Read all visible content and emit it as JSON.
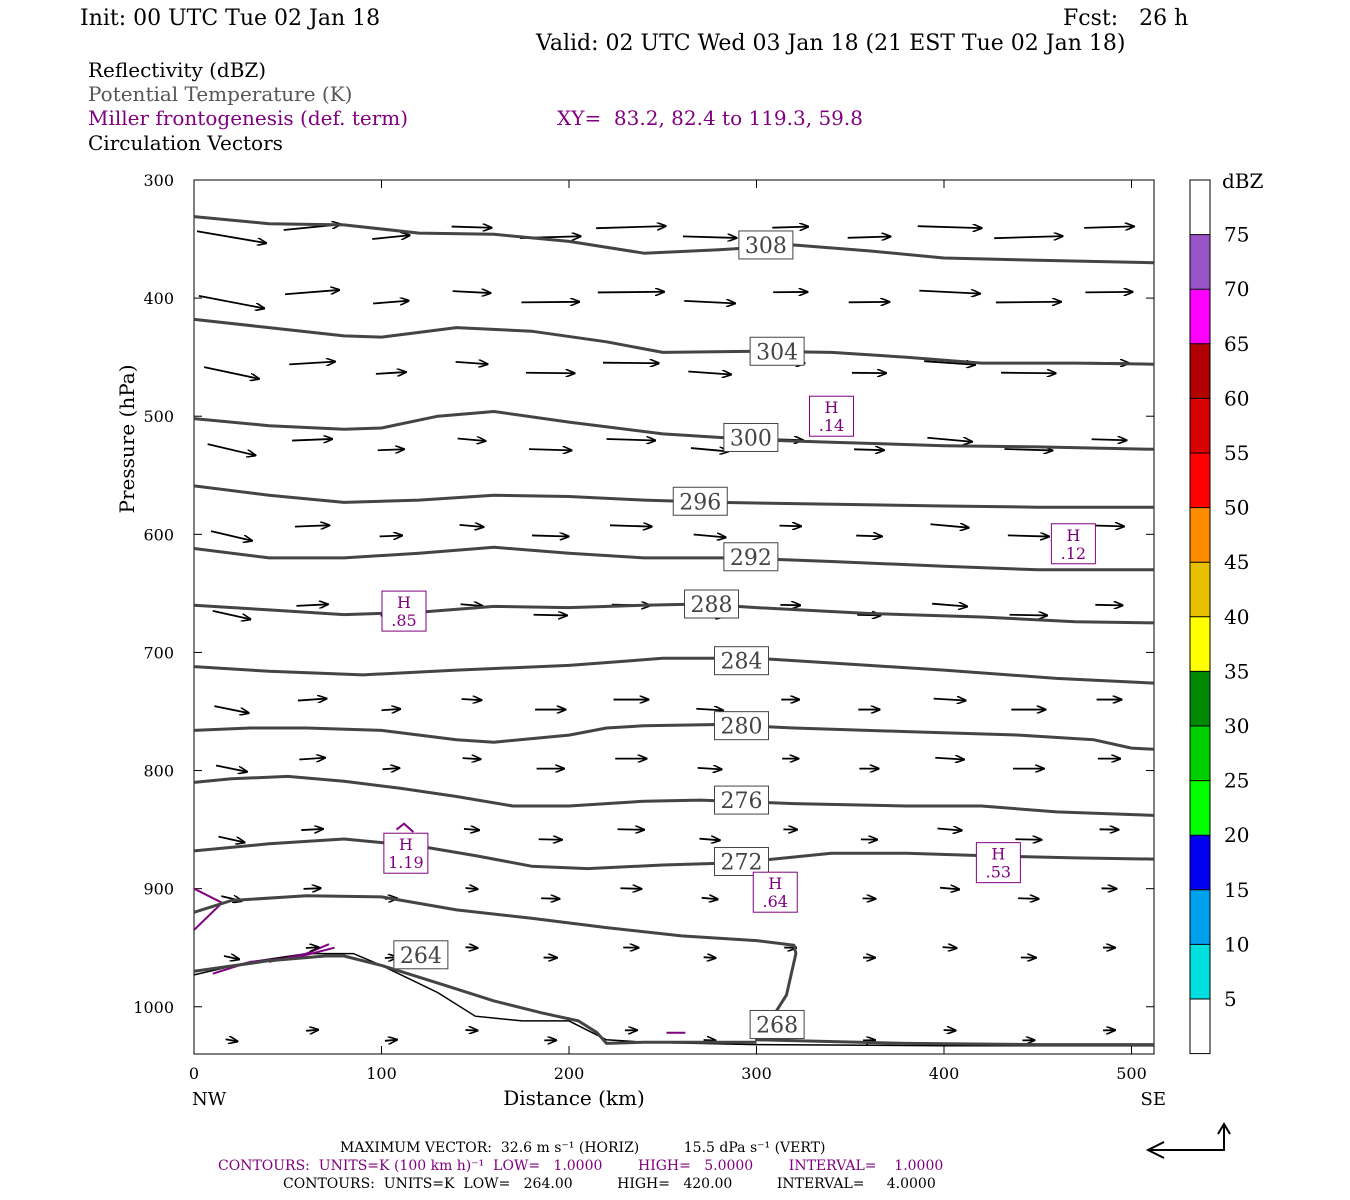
{
  "header": {
    "init": "Init: 00 UTC Tue 02 Jan 18",
    "fcst": "Fcst:   26 h",
    "valid": "Valid: 02 UTC Wed 03 Jan 18 (21 EST Tue 02 Jan 18)",
    "fields": [
      {
        "label": "Reflectivity (dBZ)",
        "color": "#000000"
      },
      {
        "label": "Potential Temperature (K)",
        "color": "#555555"
      },
      {
        "label": "Miller frontogenesis (def. term)",
        "color": "#800080"
      },
      {
        "label": "Circulation Vectors",
        "color": "#000000"
      }
    ],
    "xy": "XY=  83.2, 82.4 to 119.3, 59.8"
  },
  "colorbar": {
    "unit": "dBZ",
    "levels": [
      "5",
      "10",
      "15",
      "20",
      "25",
      "30",
      "35",
      "40",
      "45",
      "50",
      "55",
      "60",
      "65",
      "70",
      "75"
    ],
    "colors": [
      "#ffffff",
      "#00e0e0",
      "#00a0f0",
      "#0000f0",
      "#00ff00",
      "#00d000",
      "#008800",
      "#ffff00",
      "#e8c000",
      "#ff8c00",
      "#ff0000",
      "#d80000",
      "#b00000",
      "#ff00ff",
      "#9955c8",
      "#ffffff"
    ]
  },
  "footer": {
    "vector": "MAXIMUM VECTOR:  32.6 m s⁻¹ (HORIZ)          15.5 dPa s⁻¹ (VERT)",
    "contours1": "CONTOURS:  UNITS=K (100 km h)⁻¹  LOW=   1.0000        HIGH=   5.0000        INTERVAL=    1.0000",
    "contours2": "CONTOURS:  UNITS=K  LOW=   264.00          HIGH=   420.00          INTERVAL=     4.0000"
  },
  "chart_data": {
    "type": "line",
    "title": "",
    "xlabel": "Distance (km)",
    "ylabel": "Pressure (hPa)",
    "xlim": [
      0,
      512
    ],
    "ylim": [
      1040,
      300
    ],
    "x_ticks": [
      0,
      100,
      200,
      300,
      400,
      500
    ],
    "y_ticks": [
      300,
      400,
      500,
      600,
      700,
      800,
      900,
      1000
    ],
    "x_end_labels": {
      "left": "NW",
      "right": "SE"
    },
    "isentrope_color": "#444444",
    "frontogenesis_color": "#800080",
    "isentropes": [
      {
        "label": "308",
        "label_at": [
          305,
          355
        ],
        "points": [
          [
            0,
            331
          ],
          [
            40,
            337
          ],
          [
            80,
            338
          ],
          [
            120,
            345
          ],
          [
            160,
            346
          ],
          [
            200,
            352
          ],
          [
            240,
            362
          ],
          [
            280,
            359
          ],
          [
            320,
            355
          ],
          [
            360,
            360
          ],
          [
            400,
            366
          ],
          [
            450,
            368
          ],
          [
            512,
            370
          ]
        ]
      },
      {
        "label": "304",
        "label_at": [
          311,
          445
        ],
        "points": [
          [
            0,
            418
          ],
          [
            40,
            425
          ],
          [
            80,
            432
          ],
          [
            100,
            433
          ],
          [
            140,
            425
          ],
          [
            180,
            428
          ],
          [
            220,
            437
          ],
          [
            250,
            446
          ],
          [
            300,
            445
          ],
          [
            340,
            446
          ],
          [
            380,
            450
          ],
          [
            420,
            455
          ],
          [
            470,
            455
          ],
          [
            512,
            456
          ]
        ]
      },
      {
        "label": "300",
        "label_at": [
          297,
          518
        ],
        "points": [
          [
            0,
            502
          ],
          [
            40,
            508
          ],
          [
            80,
            511
          ],
          [
            100,
            510
          ],
          [
            130,
            500
          ],
          [
            160,
            496
          ],
          [
            200,
            505
          ],
          [
            250,
            515
          ],
          [
            300,
            520
          ],
          [
            340,
            522
          ],
          [
            400,
            525
          ],
          [
            450,
            526
          ],
          [
            512,
            528
          ]
        ]
      },
      {
        "label": "296",
        "label_at": [
          270,
          572
        ],
        "points": [
          [
            0,
            559
          ],
          [
            40,
            567
          ],
          [
            80,
            573
          ],
          [
            120,
            571
          ],
          [
            160,
            567
          ],
          [
            200,
            568
          ],
          [
            240,
            571
          ],
          [
            280,
            573
          ],
          [
            320,
            574
          ],
          [
            400,
            576
          ],
          [
            450,
            577
          ],
          [
            512,
            577
          ]
        ]
      },
      {
        "label": "292",
        "label_at": [
          297,
          619
        ],
        "points": [
          [
            0,
            612
          ],
          [
            40,
            620
          ],
          [
            80,
            620
          ],
          [
            120,
            616
          ],
          [
            160,
            611
          ],
          [
            200,
            616
          ],
          [
            240,
            620
          ],
          [
            290,
            620
          ],
          [
            340,
            623
          ],
          [
            400,
            627
          ],
          [
            450,
            630
          ],
          [
            512,
            630
          ]
        ]
      },
      {
        "label": "288",
        "label_at": [
          276,
          659
        ],
        "points": [
          [
            0,
            660
          ],
          [
            40,
            664
          ],
          [
            80,
            668
          ],
          [
            120,
            666
          ],
          [
            160,
            661
          ],
          [
            200,
            662
          ],
          [
            240,
            660
          ],
          [
            270,
            659
          ],
          [
            300,
            662
          ],
          [
            360,
            667
          ],
          [
            420,
            670
          ],
          [
            470,
            674
          ],
          [
            512,
            675
          ]
        ]
      },
      {
        "label": "284",
        "label_at": [
          292,
          707
        ],
        "points": [
          [
            0,
            712
          ],
          [
            40,
            716
          ],
          [
            90,
            719
          ],
          [
            140,
            715
          ],
          [
            200,
            711
          ],
          [
            250,
            705
          ],
          [
            300,
            705
          ],
          [
            360,
            711
          ],
          [
            400,
            715
          ],
          [
            460,
            722
          ],
          [
            512,
            726
          ]
        ]
      },
      {
        "label": "280",
        "label_at": [
          292,
          762
        ],
        "points": [
          [
            0,
            766
          ],
          [
            30,
            764
          ],
          [
            60,
            764
          ],
          [
            100,
            766
          ],
          [
            140,
            774
          ],
          [
            160,
            776
          ],
          [
            200,
            770
          ],
          [
            220,
            764
          ],
          [
            240,
            762
          ],
          [
            280,
            761
          ],
          [
            320,
            764
          ],
          [
            380,
            767
          ],
          [
            440,
            770
          ],
          [
            480,
            774
          ],
          [
            500,
            781
          ],
          [
            512,
            782
          ]
        ]
      },
      {
        "label": "276",
        "label_at": [
          292,
          825
        ],
        "points": [
          [
            0,
            810
          ],
          [
            20,
            807
          ],
          [
            50,
            805
          ],
          [
            80,
            809
          ],
          [
            110,
            815
          ],
          [
            140,
            822
          ],
          [
            170,
            830
          ],
          [
            200,
            830
          ],
          [
            240,
            826
          ],
          [
            270,
            825
          ],
          [
            320,
            828
          ],
          [
            380,
            830
          ],
          [
            420,
            830
          ],
          [
            460,
            835
          ],
          [
            512,
            838
          ]
        ]
      },
      {
        "label": "272",
        "label_at": [
          292,
          877
        ],
        "points": [
          [
            0,
            868
          ],
          [
            40,
            862
          ],
          [
            80,
            858
          ],
          [
            120,
            864
          ],
          [
            150,
            872
          ],
          [
            180,
            881
          ],
          [
            210,
            883
          ],
          [
            250,
            880
          ],
          [
            290,
            878
          ],
          [
            340,
            870
          ],
          [
            380,
            870
          ],
          [
            420,
            872
          ],
          [
            470,
            874
          ],
          [
            512,
            875
          ]
        ]
      },
      {
        "label": "268",
        "label_at": [
          311,
          1015
        ],
        "points": [
          [
            0,
            920
          ],
          [
            20,
            910
          ],
          [
            60,
            906
          ],
          [
            100,
            907
          ],
          [
            140,
            918
          ],
          [
            180,
            925
          ],
          [
            220,
            933
          ],
          [
            260,
            940
          ],
          [
            300,
            944
          ],
          [
            320,
            948
          ],
          [
            321,
            955
          ],
          [
            316,
            990
          ],
          [
            310,
            1005
          ],
          [
            305,
            1010
          ],
          [
            300,
            1028
          ],
          [
            380,
            1031
          ],
          [
            450,
            1032
          ],
          [
            512,
            1032
          ]
        ]
      },
      {
        "label": "264",
        "label_at": [
          121,
          956
        ],
        "points": [
          [
            0,
            970
          ],
          [
            40,
            961
          ],
          [
            70,
            957
          ],
          [
            80,
            957
          ],
          [
            100,
            965
          ],
          [
            130,
            980
          ],
          [
            160,
            995
          ],
          [
            185,
            1005
          ],
          [
            205,
            1012
          ],
          [
            215,
            1022
          ],
          [
            220,
            1031
          ],
          [
            240,
            1030
          ],
          [
            300,
            1030
          ]
        ]
      }
    ],
    "terrain": [
      [
        0,
        973
      ],
      [
        30,
        962
      ],
      [
        60,
        955
      ],
      [
        85,
        955
      ],
      [
        100,
        965
      ],
      [
        130,
        988
      ],
      [
        150,
        1008
      ],
      [
        175,
        1012
      ],
      [
        200,
        1012
      ],
      [
        210,
        1020
      ],
      [
        220,
        1028
      ],
      [
        240,
        1030
      ],
      [
        300,
        1032
      ],
      [
        400,
        1033
      ],
      [
        512,
        1033
      ]
    ],
    "frontogenesis_maxima": [
      {
        "label": "H",
        "value": ".14",
        "at": [
          340,
          500
        ]
      },
      {
        "label": "H",
        "value": ".12",
        "at": [
          469,
          608
        ]
      },
      {
        "label": "H",
        "value": ".85",
        "at": [
          112,
          665
        ]
      },
      {
        "label": "H",
        "value": "1.19",
        "at": [
          113,
          870
        ]
      },
      {
        "label": "H",
        "value": ".64",
        "at": [
          310,
          903
        ]
      },
      {
        "label": "H",
        "value": ".53",
        "at": [
          429,
          878
        ]
      }
    ]
  }
}
